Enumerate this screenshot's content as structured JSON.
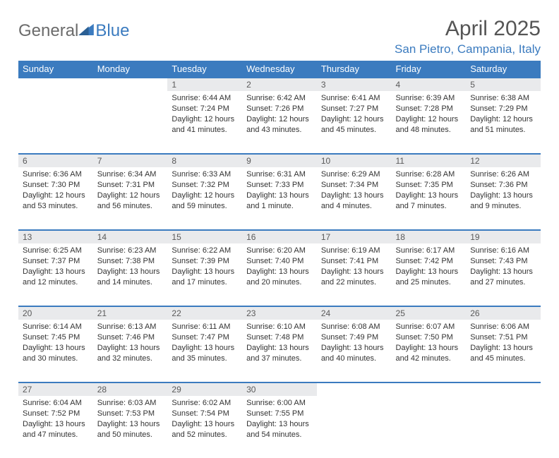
{
  "logo": {
    "part1": "General",
    "part2": "Blue"
  },
  "title": "April 2025",
  "location": "San Pietro, Campania, Italy",
  "colors": {
    "accent": "#3b7bbf",
    "header_text": "#ffffff",
    "daynum_bg": "#e9eaec",
    "body_text": "#333333",
    "logo_gray": "#6b6b6b"
  },
  "weekdays": [
    "Sunday",
    "Monday",
    "Tuesday",
    "Wednesday",
    "Thursday",
    "Friday",
    "Saturday"
  ],
  "weeks": [
    [
      null,
      null,
      {
        "n": "1",
        "sunrise": "6:44 AM",
        "sunset": "7:24 PM",
        "dl": "12 hours and 41 minutes."
      },
      {
        "n": "2",
        "sunrise": "6:42 AM",
        "sunset": "7:26 PM",
        "dl": "12 hours and 43 minutes."
      },
      {
        "n": "3",
        "sunrise": "6:41 AM",
        "sunset": "7:27 PM",
        "dl": "12 hours and 45 minutes."
      },
      {
        "n": "4",
        "sunrise": "6:39 AM",
        "sunset": "7:28 PM",
        "dl": "12 hours and 48 minutes."
      },
      {
        "n": "5",
        "sunrise": "6:38 AM",
        "sunset": "7:29 PM",
        "dl": "12 hours and 51 minutes."
      }
    ],
    [
      {
        "n": "6",
        "sunrise": "6:36 AM",
        "sunset": "7:30 PM",
        "dl": "12 hours and 53 minutes."
      },
      {
        "n": "7",
        "sunrise": "6:34 AM",
        "sunset": "7:31 PM",
        "dl": "12 hours and 56 minutes."
      },
      {
        "n": "8",
        "sunrise": "6:33 AM",
        "sunset": "7:32 PM",
        "dl": "12 hours and 59 minutes."
      },
      {
        "n": "9",
        "sunrise": "6:31 AM",
        "sunset": "7:33 PM",
        "dl": "13 hours and 1 minute."
      },
      {
        "n": "10",
        "sunrise": "6:29 AM",
        "sunset": "7:34 PM",
        "dl": "13 hours and 4 minutes."
      },
      {
        "n": "11",
        "sunrise": "6:28 AM",
        "sunset": "7:35 PM",
        "dl": "13 hours and 7 minutes."
      },
      {
        "n": "12",
        "sunrise": "6:26 AM",
        "sunset": "7:36 PM",
        "dl": "13 hours and 9 minutes."
      }
    ],
    [
      {
        "n": "13",
        "sunrise": "6:25 AM",
        "sunset": "7:37 PM",
        "dl": "13 hours and 12 minutes."
      },
      {
        "n": "14",
        "sunrise": "6:23 AM",
        "sunset": "7:38 PM",
        "dl": "13 hours and 14 minutes."
      },
      {
        "n": "15",
        "sunrise": "6:22 AM",
        "sunset": "7:39 PM",
        "dl": "13 hours and 17 minutes."
      },
      {
        "n": "16",
        "sunrise": "6:20 AM",
        "sunset": "7:40 PM",
        "dl": "13 hours and 20 minutes."
      },
      {
        "n": "17",
        "sunrise": "6:19 AM",
        "sunset": "7:41 PM",
        "dl": "13 hours and 22 minutes."
      },
      {
        "n": "18",
        "sunrise": "6:17 AM",
        "sunset": "7:42 PM",
        "dl": "13 hours and 25 minutes."
      },
      {
        "n": "19",
        "sunrise": "6:16 AM",
        "sunset": "7:43 PM",
        "dl": "13 hours and 27 minutes."
      }
    ],
    [
      {
        "n": "20",
        "sunrise": "6:14 AM",
        "sunset": "7:45 PM",
        "dl": "13 hours and 30 minutes."
      },
      {
        "n": "21",
        "sunrise": "6:13 AM",
        "sunset": "7:46 PM",
        "dl": "13 hours and 32 minutes."
      },
      {
        "n": "22",
        "sunrise": "6:11 AM",
        "sunset": "7:47 PM",
        "dl": "13 hours and 35 minutes."
      },
      {
        "n": "23",
        "sunrise": "6:10 AM",
        "sunset": "7:48 PM",
        "dl": "13 hours and 37 minutes."
      },
      {
        "n": "24",
        "sunrise": "6:08 AM",
        "sunset": "7:49 PM",
        "dl": "13 hours and 40 minutes."
      },
      {
        "n": "25",
        "sunrise": "6:07 AM",
        "sunset": "7:50 PM",
        "dl": "13 hours and 42 minutes."
      },
      {
        "n": "26",
        "sunrise": "6:06 AM",
        "sunset": "7:51 PM",
        "dl": "13 hours and 45 minutes."
      }
    ],
    [
      {
        "n": "27",
        "sunrise": "6:04 AM",
        "sunset": "7:52 PM",
        "dl": "13 hours and 47 minutes."
      },
      {
        "n": "28",
        "sunrise": "6:03 AM",
        "sunset": "7:53 PM",
        "dl": "13 hours and 50 minutes."
      },
      {
        "n": "29",
        "sunrise": "6:02 AM",
        "sunset": "7:54 PM",
        "dl": "13 hours and 52 minutes."
      },
      {
        "n": "30",
        "sunrise": "6:00 AM",
        "sunset": "7:55 PM",
        "dl": "13 hours and 54 minutes."
      },
      null,
      null,
      null
    ]
  ],
  "labels": {
    "sunrise": "Sunrise:",
    "sunset": "Sunset:",
    "daylight": "Daylight:"
  }
}
